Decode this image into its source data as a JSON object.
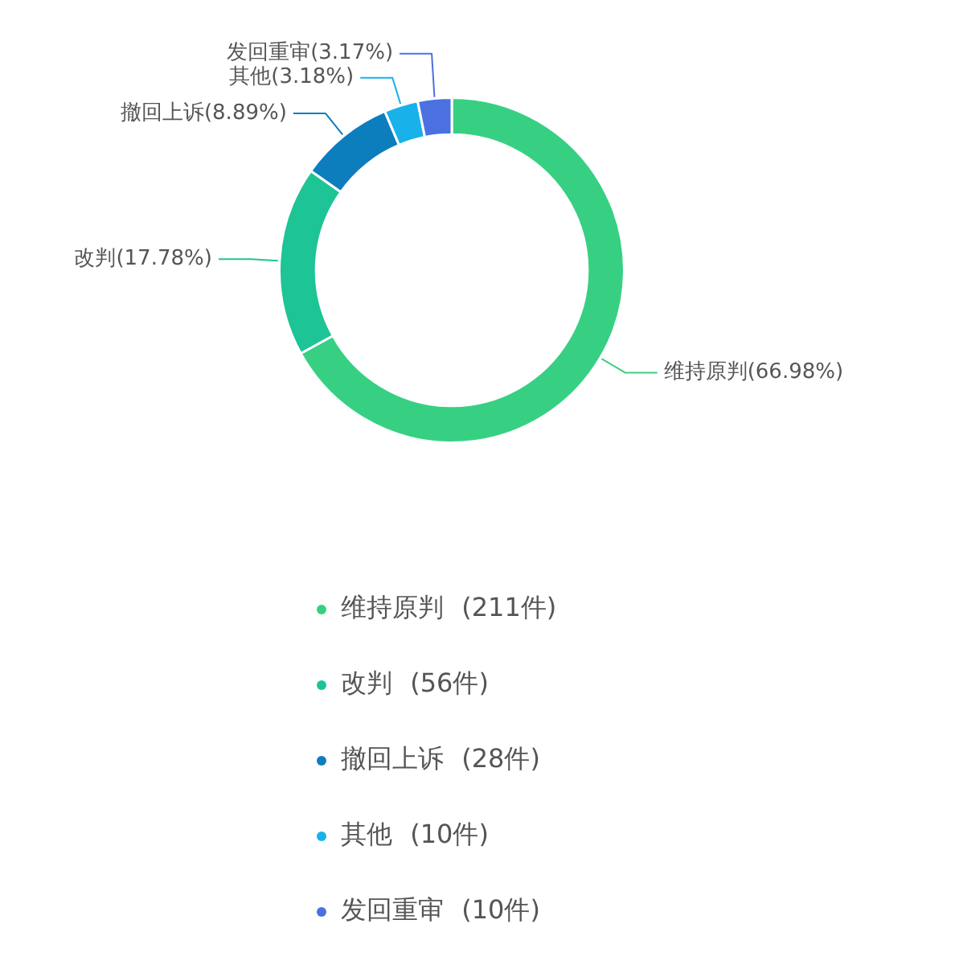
{
  "chart_data": {
    "type": "donut",
    "categories": [
      "维持原判 (211件)",
      "改判 (56件)",
      "撤回上诉 (28件)",
      "其他 (10件)",
      "发回重审 (10件)"
    ],
    "values": [
      211,
      56,
      28,
      10,
      10
    ],
    "colors": [
      "#37d083",
      "#1dc495",
      "#0c7ebe",
      "#19b1ea",
      "#4b71e1"
    ],
    "value_labels": [
      "维持原判(66.98%)",
      "改判(17.78%)",
      "撤回上诉(8.89%)",
      "其他(3.18%)",
      "发回重审(3.17%)"
    ],
    "legend": "bottom"
  }
}
